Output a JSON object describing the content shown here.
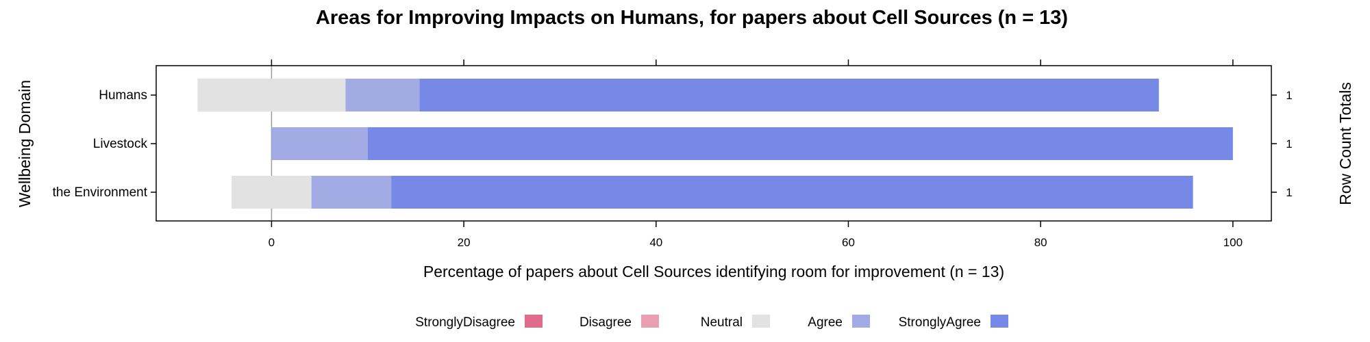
{
  "chart_data": {
    "type": "bar",
    "stacked": true,
    "orientation": "horizontal",
    "diverging": true,
    "title": "Areas for Improving Impacts on Humans, for papers about Cell Sources (n = 13)",
    "xlabel": "Percentage of papers about Cell Sources identifying room for improvement (n = 13)",
    "ylabel": "Wellbeing Domain",
    "ylabel_right": "Row Count Totals",
    "xlim": [
      -12,
      104
    ],
    "xticks": [
      0,
      20,
      40,
      60,
      80,
      100
    ],
    "categories": [
      "Humans",
      "Livestock",
      "the Environment"
    ],
    "row_totals": [
      "1",
      "1",
      "1"
    ],
    "series": [
      {
        "name": "StronglyDisagree",
        "color": "#E06C8A",
        "values": [
          0,
          0,
          0
        ]
      },
      {
        "name": "Disagree",
        "color": "#E8A0B0",
        "values": [
          0,
          0,
          0
        ]
      },
      {
        "name": "Neutral",
        "color": "#E2E2E2",
        "values": [
          15.4,
          0,
          8.3
        ]
      },
      {
        "name": "Agree",
        "color": "#A3ABE5",
        "values": [
          7.7,
          10,
          8.3
        ]
      },
      {
        "name": "StronglyAgree",
        "color": "#7789E7",
        "values": [
          76.9,
          90,
          83.4
        ]
      }
    ],
    "legend_position": "bottom",
    "grid": false
  }
}
